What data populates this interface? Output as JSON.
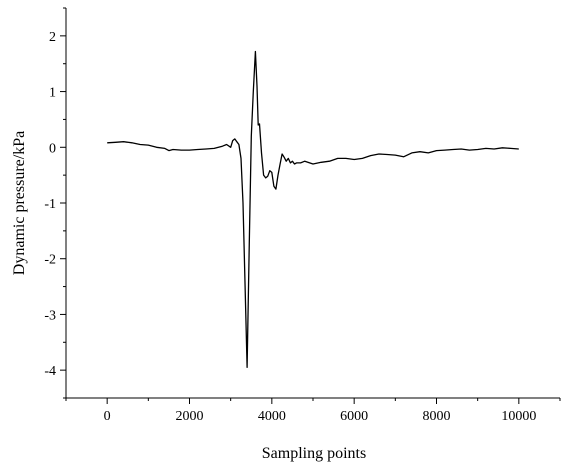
{
  "chart_data": {
    "type": "line",
    "title": "",
    "xlabel": "Sampling points",
    "ylabel": "Dynamic pressure/kPa",
    "xlim": [
      -1000,
      11000
    ],
    "ylim": [
      -4.5,
      2.5
    ],
    "xticks": [
      0,
      2000,
      4000,
      6000,
      8000,
      10000
    ],
    "yticks": [
      -4,
      -3,
      -2,
      -1,
      0,
      1,
      2
    ],
    "xtick_labels": [
      "0",
      "2000",
      "4000",
      "6000",
      "8000",
      "10000"
    ],
    "ytick_labels": [
      "-4",
      "-3",
      "-2",
      "-1",
      "0",
      "1",
      "2"
    ],
    "grid": false,
    "legend": "none",
    "line_color": "#000000",
    "series": [
      {
        "x": [
          0,
          200,
          400,
          600,
          800,
          1000,
          1200,
          1400,
          1500,
          1600,
          1800,
          2000,
          2200,
          2400,
          2600,
          2800,
          2900,
          3000,
          3050,
          3100,
          3150,
          3200,
          3250,
          3300,
          3350,
          3400,
          3450,
          3500,
          3550,
          3600,
          3640,
          3670,
          3700,
          3750,
          3800,
          3850,
          3900,
          3950,
          4000,
          4050,
          4100,
          4150,
          4200,
          4250,
          4300,
          4350,
          4400,
          4450,
          4500,
          4550,
          4600,
          4700,
          4800,
          5000,
          5200,
          5400,
          5600,
          5800,
          6000,
          6200,
          6400,
          6600,
          6800,
          7000,
          7200,
          7400,
          7600,
          7800,
          8000,
          8200,
          8400,
          8600,
          8800,
          9000,
          9200,
          9400,
          9600,
          9800,
          10000
        ],
        "y": [
          0.08,
          0.09,
          0.1,
          0.08,
          0.05,
          0.04,
          0.0,
          -0.02,
          -0.06,
          -0.04,
          -0.05,
          -0.05,
          -0.04,
          -0.03,
          -0.02,
          0.02,
          0.05,
          0.0,
          0.12,
          0.15,
          0.1,
          0.05,
          -0.2,
          -1.0,
          -2.5,
          -3.95,
          -1.8,
          0.2,
          1.0,
          1.72,
          1.1,
          0.4,
          0.42,
          -0.1,
          -0.5,
          -0.55,
          -0.52,
          -0.42,
          -0.45,
          -0.7,
          -0.75,
          -0.5,
          -0.3,
          -0.12,
          -0.18,
          -0.25,
          -0.2,
          -0.28,
          -0.25,
          -0.3,
          -0.28,
          -0.28,
          -0.25,
          -0.3,
          -0.27,
          -0.25,
          -0.2,
          -0.2,
          -0.22,
          -0.2,
          -0.15,
          -0.12,
          -0.13,
          -0.14,
          -0.17,
          -0.1,
          -0.08,
          -0.1,
          -0.06,
          -0.05,
          -0.04,
          -0.03,
          -0.05,
          -0.04,
          -0.02,
          -0.03,
          -0.01,
          -0.02,
          -0.03
        ]
      }
    ]
  }
}
